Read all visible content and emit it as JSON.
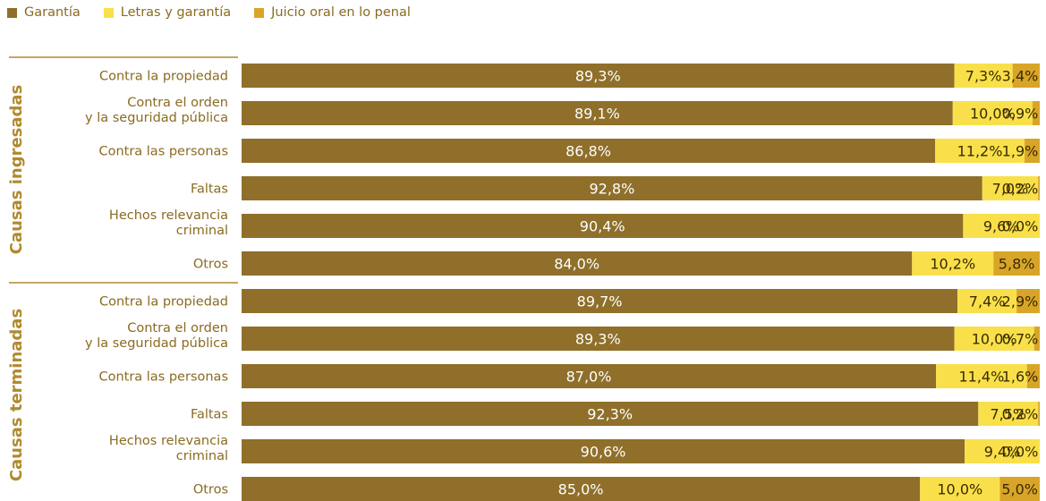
{
  "colors": {
    "garantia": "#8f6f2a",
    "letras": "#f9e04a",
    "juicio": "#d9a528",
    "label": "#8a6b21",
    "group": "#b08a2f"
  },
  "chart_data": {
    "type": "bar",
    "orientation": "horizontal",
    "stacked": true,
    "percent_stacked": true,
    "legend_position": "top-left",
    "series_names": [
      "Garantía",
      "Letras y garantía",
      "Juicio oral en lo penal"
    ],
    "groups": [
      {
        "name": "Causas ingresadas",
        "rows": [
          {
            "label": [
              "Contra la propiedad"
            ],
            "values": [
              "89,3%",
              "7,3%",
              "3,4%"
            ],
            "num": [
              89.3,
              7.3,
              3.4
            ]
          },
          {
            "label": [
              "Contra el orden",
              "y la seguridad pública"
            ],
            "values": [
              "89,1%",
              "10,0%",
              "0,9%"
            ],
            "num": [
              89.1,
              10.0,
              0.9
            ]
          },
          {
            "label": [
              "Contra las personas"
            ],
            "values": [
              "86,8%",
              "11,2%",
              "1,9%"
            ],
            "num": [
              86.8,
              11.2,
              1.9
            ]
          },
          {
            "label": [
              "Faltas"
            ],
            "values": [
              "92,8%",
              "7,0%",
              "0,2%"
            ],
            "num": [
              92.8,
              7.0,
              0.2
            ]
          },
          {
            "label": [
              "Hechos relevancia",
              "criminal"
            ],
            "values": [
              "90,4%",
              "9,6%",
              "0,0%"
            ],
            "num": [
              90.4,
              9.6,
              0.0
            ]
          },
          {
            "label": [
              "Otros"
            ],
            "values": [
              "84,0%",
              "10,2%",
              "5,8%"
            ],
            "num": [
              84.0,
              10.2,
              5.8
            ]
          }
        ]
      },
      {
        "name": "Causas terminadas",
        "rows": [
          {
            "label": [
              "Contra la propiedad"
            ],
            "values": [
              "89,7%",
              "7,4%",
              "2,9%"
            ],
            "num": [
              89.7,
              7.4,
              2.9
            ]
          },
          {
            "label": [
              "Contra el orden",
              "y la seguridad pública"
            ],
            "values": [
              "89,3%",
              "10,0%",
              "0,7%"
            ],
            "num": [
              89.3,
              10.0,
              0.7
            ]
          },
          {
            "label": [
              "Contra las personas"
            ],
            "values": [
              "87,0%",
              "11,4%",
              "1,6%"
            ],
            "num": [
              87.0,
              11.4,
              1.6
            ]
          },
          {
            "label": [
              "Faltas"
            ],
            "values": [
              "92,3%",
              "7,5%",
              "0,2%"
            ],
            "num": [
              92.3,
              7.5,
              0.2
            ]
          },
          {
            "label": [
              "Hechos relevancia",
              "criminal"
            ],
            "values": [
              "90,6%",
              "9,4%",
              "0,0%"
            ],
            "num": [
              90.6,
              9.4,
              0.0
            ]
          },
          {
            "label": [
              "Otros"
            ],
            "values": [
              "85,0%",
              "10,0%",
              "5,0%"
            ],
            "num": [
              85.0,
              10.0,
              5.0
            ]
          }
        ]
      }
    ]
  }
}
